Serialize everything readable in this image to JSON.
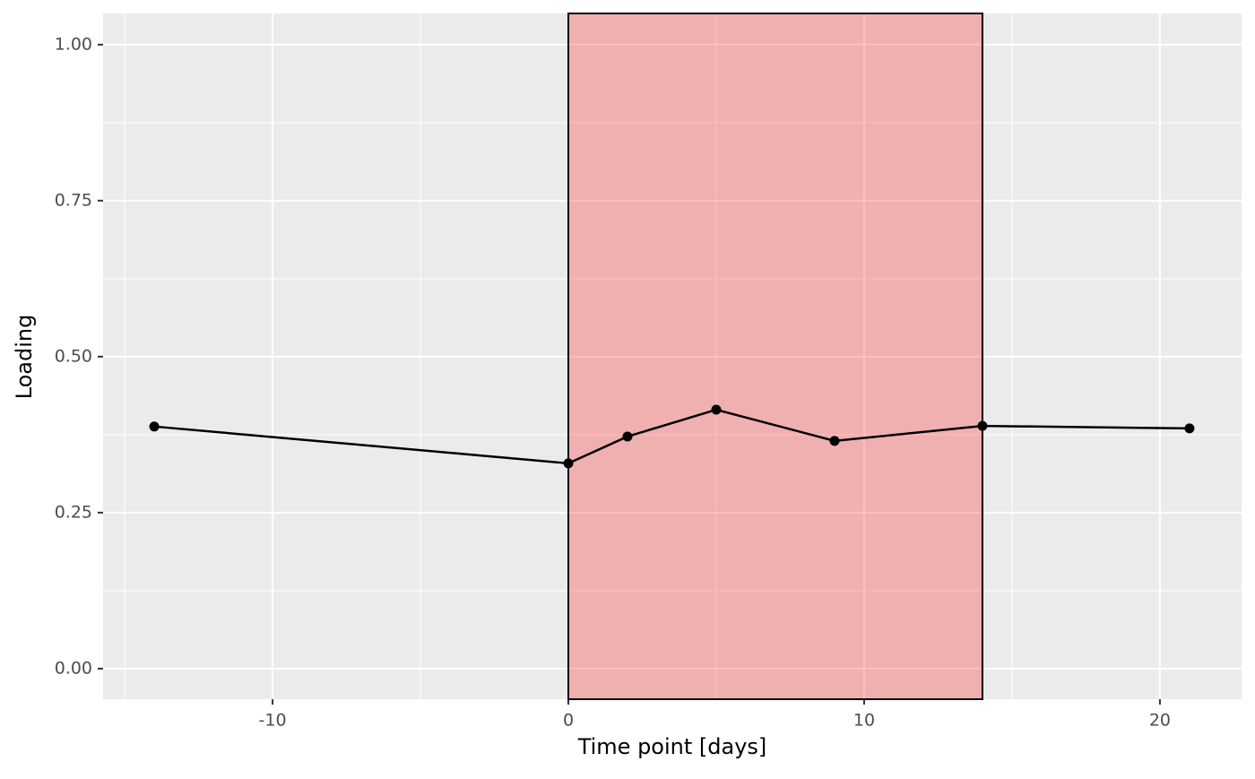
{
  "chart_data": {
    "type": "line",
    "x_label": "Time point [days]",
    "y_label": "Loading",
    "x": [
      -14,
      0,
      2,
      5,
      9,
      14,
      21
    ],
    "series": [
      {
        "color": "#000000",
        "values": [
          0.388,
          0.329,
          0.372,
          0.415,
          0.365,
          0.389,
          0.385
        ]
      }
    ],
    "shaded_region": {
      "x": [
        0,
        14
      ],
      "color": "#ff0000",
      "opacity": 0.25
    },
    "xlim": [
      -15.73,
      22.76
    ],
    "ylim": [
      -0.049,
      1.05
    ],
    "xticks": [
      -10,
      0,
      10,
      20
    ],
    "yticks": [
      {
        "value": 0,
        "label": "0.00"
      },
      {
        "value": 0.25,
        "label": "0.25"
      },
      {
        "value": 0.5,
        "label": "0.50"
      },
      {
        "value": 0.75,
        "label": "0.75"
      },
      {
        "value": 1,
        "label": "1.00"
      }
    ],
    "xminor": [
      -15,
      -5,
      5,
      15
    ],
    "yminor": [
      0.125,
      0.375,
      0.625,
      0.875
    ],
    "grid": true
  }
}
